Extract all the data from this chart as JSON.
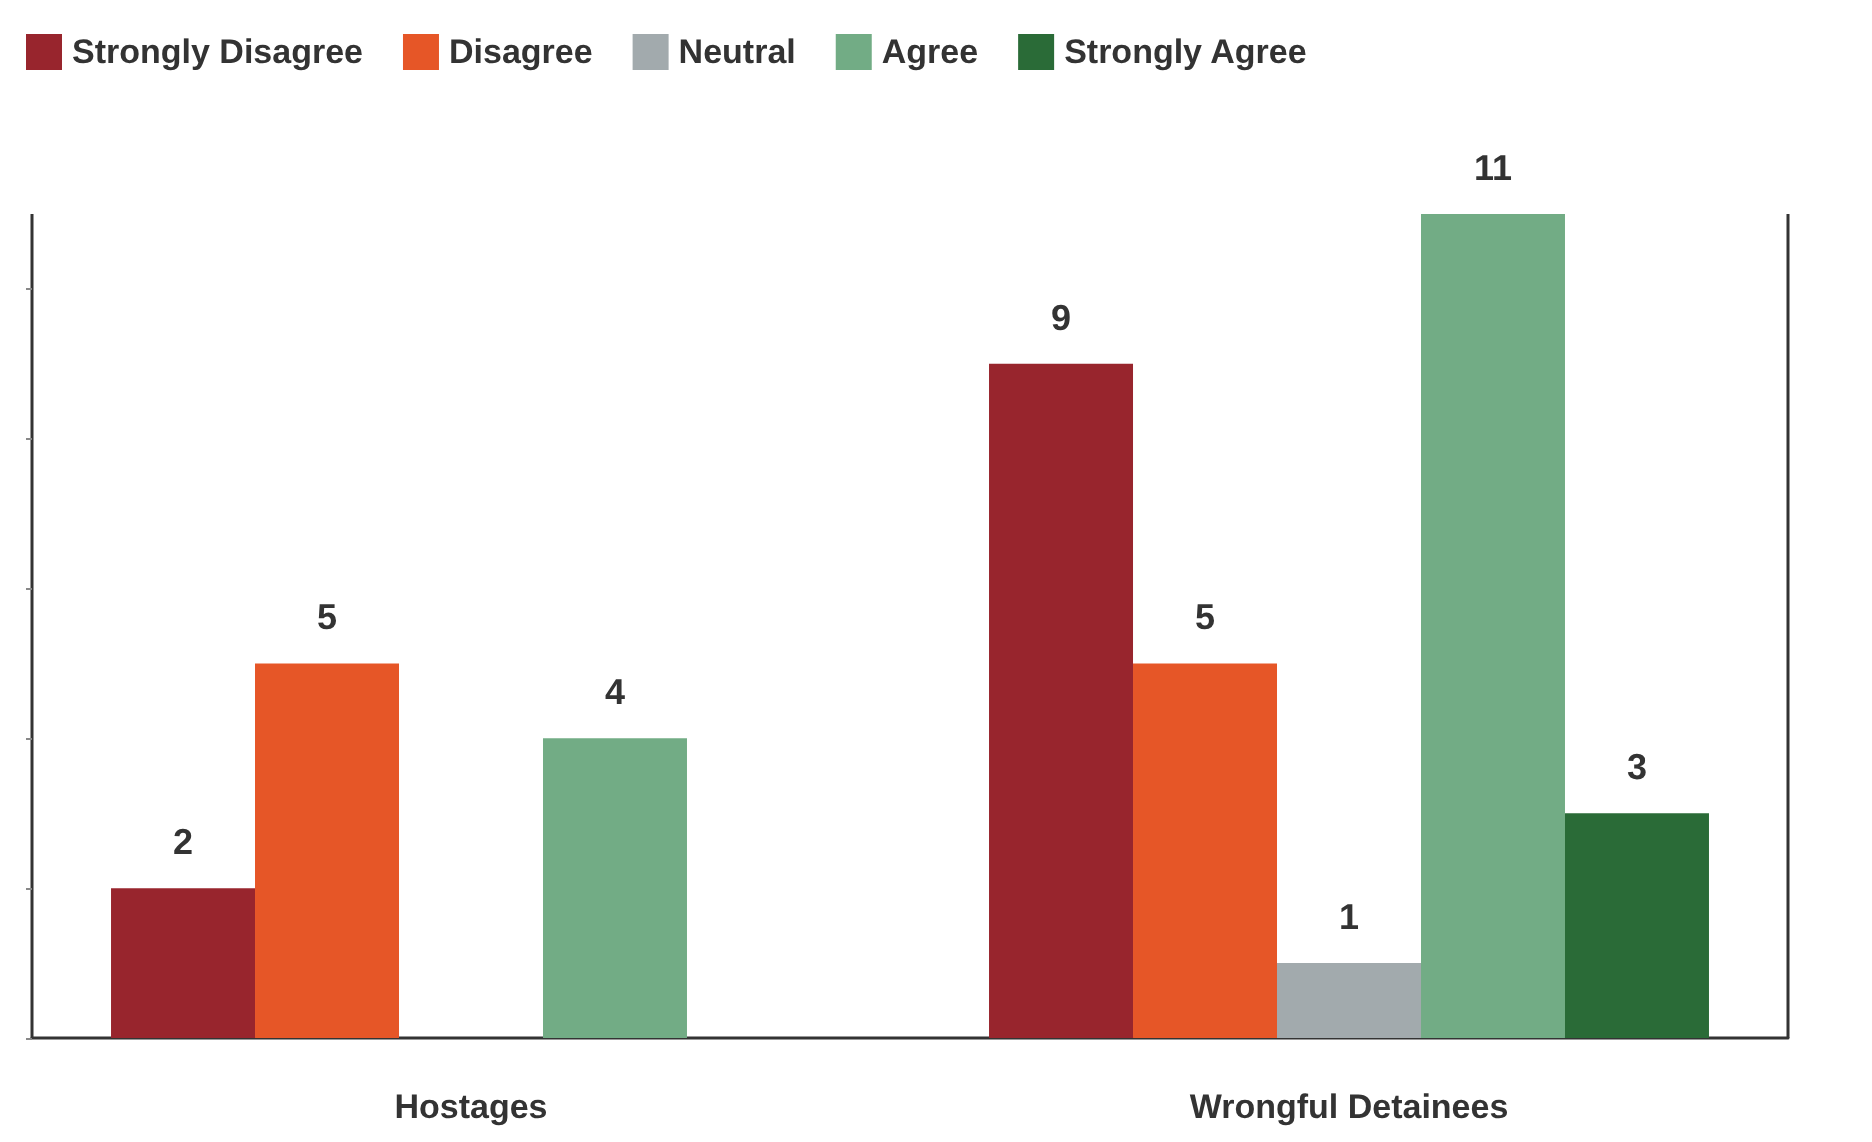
{
  "chart_data": {
    "type": "bar",
    "categories": [
      "Hostages",
      "Wrongful Detainees"
    ],
    "series": [
      {
        "name": "Strongly Disagree",
        "color": "#98252d",
        "values": [
          2,
          9
        ]
      },
      {
        "name": "Disagree",
        "color": "#e65627",
        "values": [
          5,
          5
        ]
      },
      {
        "name": "Neutral",
        "color": "#a2aaad",
        "values": [
          null,
          1
        ]
      },
      {
        "name": "Agree",
        "color": "#72ac85",
        "values": [
          4,
          11
        ]
      },
      {
        "name": "Strongly Agree",
        "color": "#2a6b37",
        "values": [
          null,
          3
        ]
      }
    ],
    "ylim": [
      0,
      11
    ],
    "yticks": [
      {
        "value": 0,
        "label": null
      },
      {
        "value": 2,
        "label": null
      },
      {
        "value": 4,
        "label": null
      },
      {
        "value": 6,
        "label": null
      },
      {
        "value": 8,
        "label": null
      },
      {
        "value": 10,
        "label": null
      }
    ],
    "tick_labels": "x",
    "grid": "x",
    "legend": "top left",
    "data_labels": true
  }
}
